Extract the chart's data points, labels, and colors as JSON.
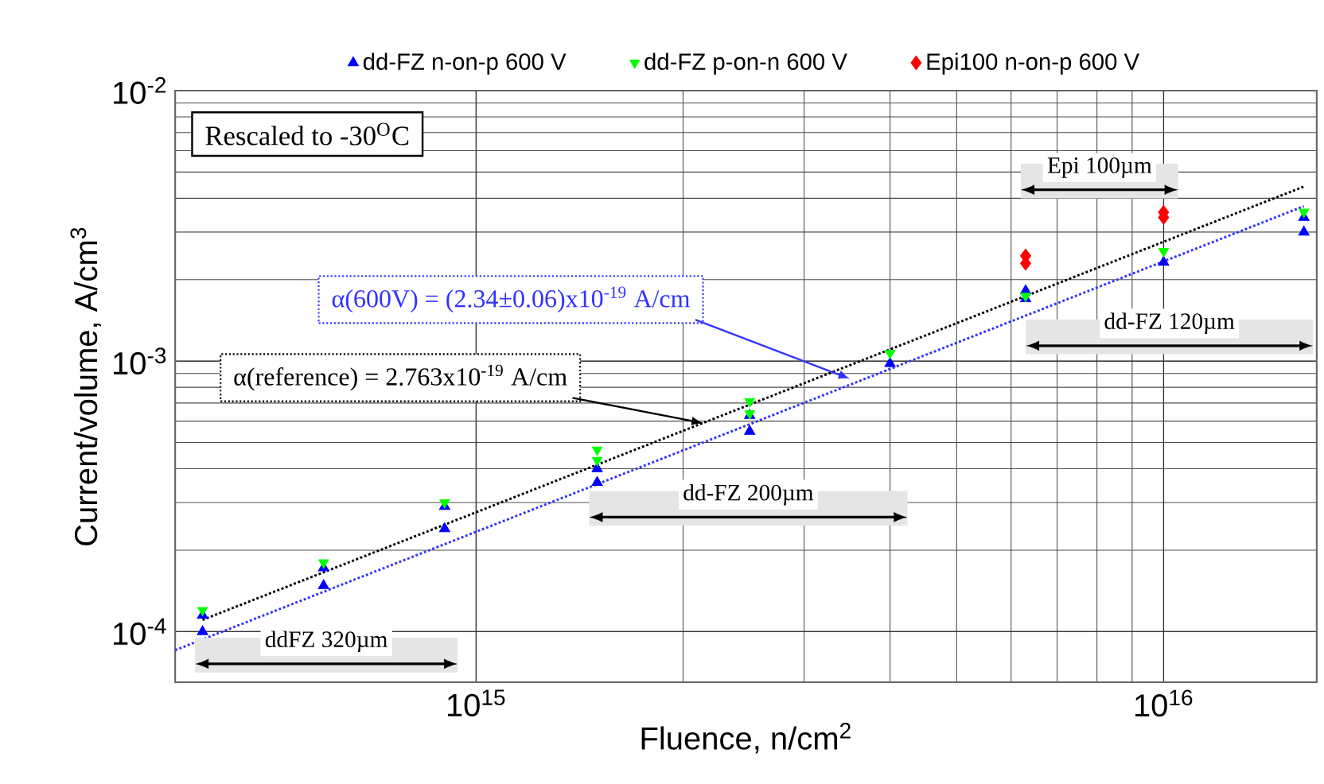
{
  "chart_data": {
    "type": "scatter",
    "xlabel": "Fluence, n/cm$^{2}$",
    "ylabel": "Current/volume, A/cm$^{3}$",
    "xlim": [
      365000000000000.0,
      1.67e+16
    ],
    "ylim": [
      6.5e-05,
      0.01
    ],
    "xticks": [
      {
        "value": 1000000000000000.0,
        "label": "10$^{15}$"
      },
      {
        "value": 1e+16,
        "label": "10$^{16}$"
      }
    ],
    "yticks": [
      {
        "value": 0.0001,
        "label": "10$^{-4}$"
      },
      {
        "value": 0.001,
        "label": "10$^{-3}$"
      },
      {
        "value": 0.01,
        "label": "10$^{-2}$"
      }
    ],
    "log": "xy",
    "grid": true,
    "legend": "top",
    "series": [
      {
        "name": "dd-FZ n-on-p 600 V",
        "color": "#0000ff",
        "marker": "triangle",
        "x": [
          400000000000000.0,
          400000000000000.0,
          600000000000000.0,
          600000000000000.0,
          900000000000000.0,
          900000000000000.0,
          1500000000000000.0,
          1500000000000000.0,
          2500000000000000.0,
          2500000000000000.0,
          4000000000000000.0,
          6300000000000000.0,
          6300000000000000.0,
          1e+16,
          1.6e+16,
          1.6e+16
        ],
        "values": [
          0.0001,
          0.000115,
          0.000148,
          0.000172,
          0.00024,
          0.00029,
          0.000356,
          0.0004,
          0.00055,
          0.00063,
          0.00098,
          0.0017,
          0.00182,
          0.00232,
          0.003,
          0.0034
        ]
      },
      {
        "name": "dd-FZ p-on-n 600 V",
        "color": "#00ff00",
        "marker": "triangle-down",
        "x": [
          400000000000000.0,
          600000000000000.0,
          900000000000000.0,
          1500000000000000.0,
          1500000000000000.0,
          2500000000000000.0,
          2500000000000000.0,
          4000000000000000.0,
          6300000000000000.0,
          1e+16,
          1.6e+16
        ],
        "values": [
          0.00012,
          0.00018,
          0.0003,
          0.00043,
          0.00047,
          0.00064,
          0.00071,
          0.00107,
          0.00174,
          0.00255,
          0.00356
        ]
      },
      {
        "name": "Epi100 n-on-p 600 V",
        "color": "#ff0000",
        "marker": "diamond",
        "x": [
          6300000000000000.0,
          6300000000000000.0,
          1e+16,
          1e+16
        ],
        "values": [
          0.0023,
          0.00245,
          0.0034,
          0.00355
        ]
      },
      {
        "type": "line",
        "color": "#3333ff",
        "line_style": "dotted",
        "marker": "none",
        "x": [
          365000000000000.0,
          1.6e+16
        ],
        "values": [
          8.54e-05,
          0.00374
        ]
      },
      {
        "type": "line",
        "color": "#000000",
        "line_style": "dotted",
        "marker": "none",
        "x": [
          400000000000000.0,
          1.6e+16
        ],
        "values": [
          0.0001105,
          0.00442
        ]
      }
    ],
    "bands": [
      {
        "axis": "x",
        "from": 390000000000000.0,
        "to": 940000000000000.0,
        "label": "ddFZ 320µm"
      },
      {
        "axis": "x",
        "from": 1460000000000000.0,
        "to": 4240000000000000.0,
        "label": "dd-FZ 200µm"
      },
      {
        "axis": "x",
        "from": 6200000000000000.0,
        "to": 1.05e+16,
        "label": "Epi 100µm"
      },
      {
        "axis": "x",
        "from": 6300000000000000.0,
        "to": 1.65e+16,
        "label": "dd-FZ 120µm"
      }
    ],
    "annotations": [
      "Rescaled to -30$^{O}$C",
      {
        "text": "α(600V) = (2.34±0.06)x10$^{-19}$ A/cm",
        "x": 3500000000000000.0,
        "y": 0.00086
      },
      {
        "text": "α(reference) = 2.763x10$^{-19}$ A/cm",
        "x": 2140000000000000.0,
        "y": 0.00059
      }
    ]
  }
}
